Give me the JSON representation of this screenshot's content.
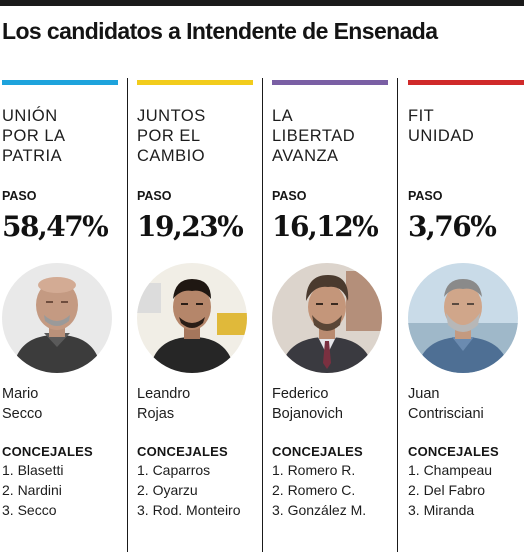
{
  "headline": "Los candidatos a Intendente de Ensenada",
  "columns": [
    {
      "accent": "#1ea3dc",
      "party_lines": [
        "UNIÓN",
        "POR LA",
        "PATRIA"
      ],
      "paso_label": "PASO",
      "percentage": "58,47%",
      "photo_icon": "portrait-bald-man",
      "candidate_lines": [
        "Mario",
        "Secco"
      ],
      "concejales_label": "CONCEJALES",
      "concejales": [
        "1. Blasetti",
        "2. Nardini",
        "3. Secco"
      ]
    },
    {
      "accent": "#f2cc1c",
      "party_lines": [
        "JUNTOS",
        "POR EL",
        "CAMBIO"
      ],
      "paso_label": "PASO",
      "percentage": "19,23%",
      "photo_icon": "portrait-young-man",
      "candidate_lines": [
        "Leandro",
        "Rojas"
      ],
      "concejales_label": "CONCEJALES",
      "concejales": [
        "1. Caparros",
        "2. Oyarzu",
        "3. Rod. Monteiro"
      ]
    },
    {
      "accent": "#7a5fa4",
      "party_lines": [
        "LA",
        "LIBERTAD",
        "AVANZA"
      ],
      "paso_label": "PASO",
      "percentage": "16,12%",
      "photo_icon": "portrait-man-suit",
      "candidate_lines": [
        "Federico",
        "Bojanovich"
      ],
      "concejales_label": "CONCEJALES",
      "concejales": [
        "1. Romero R.",
        "2. Romero C.",
        "3. González M."
      ]
    },
    {
      "accent": "#d02a2a",
      "party_lines": [
        "FIT",
        "UNIDAD"
      ],
      "paso_label": "PASO",
      "percentage": "3,76%",
      "photo_icon": "portrait-gray-beard",
      "candidate_lines": [
        "Juan",
        "Contrisciani"
      ],
      "concejales_label": "CONCEJALES",
      "concejales": [
        "1. Champeau",
        "2. Del Fabro",
        "3. Miranda"
      ]
    }
  ]
}
